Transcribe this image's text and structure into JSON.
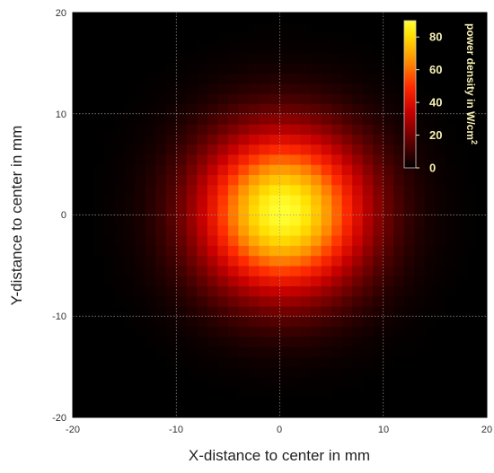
{
  "chart_data": {
    "type": "heatmap",
    "title": "",
    "xlabel": "X-distance to center in mm",
    "ylabel": "Y-distance to center in mm",
    "xlim": [
      -20,
      20
    ],
    "ylim": [
      -20,
      20
    ],
    "x_ticks": [
      "-20",
      "-10",
      "0",
      "10",
      "20"
    ],
    "y_ticks": [
      "-20",
      "-10",
      "0",
      "10",
      "20"
    ],
    "grid": true,
    "grid_style": "dotted",
    "colormap": "hot",
    "colormap_stops": [
      "#000000",
      "#5a0000",
      "#c80000",
      "#ff2a00",
      "#ff8c00",
      "#ffe000",
      "#ffff33"
    ],
    "colorbar": {
      "label": "power density in W/cm",
      "label_superscript": "2",
      "ticks": [
        "0",
        "20",
        "40",
        "60",
        "80"
      ],
      "range": [
        0,
        90
      ],
      "placement": "top-right"
    },
    "grid_cells": 40,
    "distribution": {
      "shape": "gaussian",
      "peak_value": 90,
      "center_x": 0.3,
      "center_y": 0.3,
      "sigma_mm": 5.6
    }
  }
}
